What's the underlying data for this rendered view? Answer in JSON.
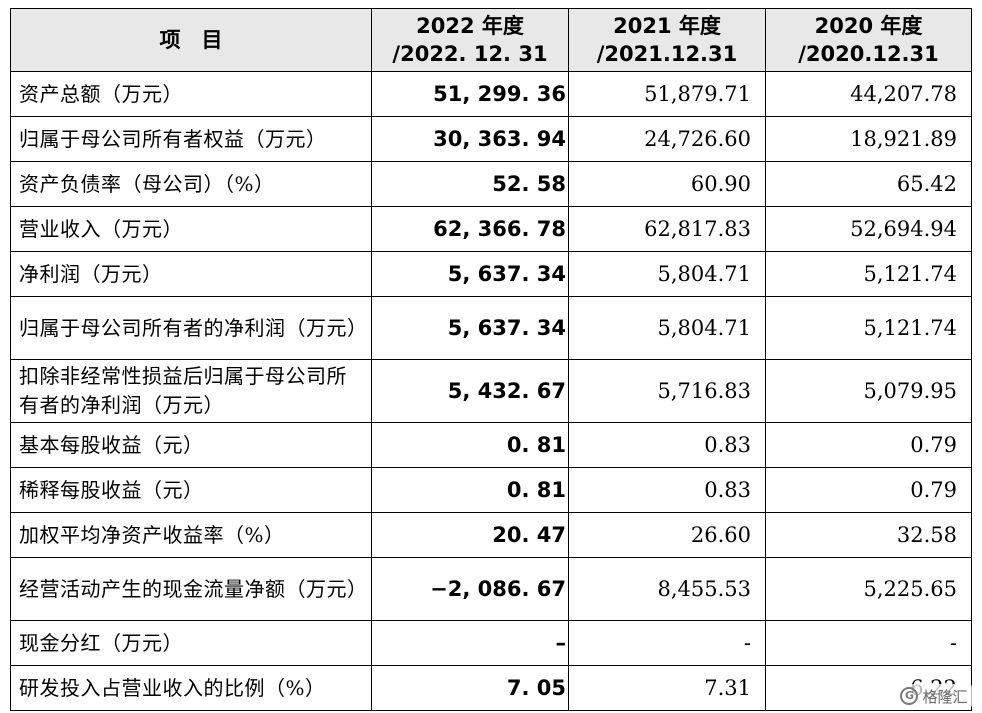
{
  "header": {
    "item": "项　目",
    "col2022_line1": "2022 年度",
    "col2022_line2": "/2022. 12. 31",
    "col2021_line1": "2021 年度",
    "col2021_line2": "/2021.12.31",
    "col2020_line1": "2020 年度",
    "col2020_line2": "/2020.12.31"
  },
  "rows": [
    {
      "label": "资产总额（万元）",
      "v2022": "51, 299. 36",
      "v2021": "51,879.71",
      "v2020": "44,207.78"
    },
    {
      "label": "归属于母公司所有者权益（万元）",
      "v2022": "30, 363. 94",
      "v2021": "24,726.60",
      "v2020": "18,921.89"
    },
    {
      "label": "资产负债率（母公司）（%）",
      "v2022": "52. 58",
      "v2021": "60.90",
      "v2020": "65.42"
    },
    {
      "label": "营业收入（万元）",
      "v2022": "62, 366. 78",
      "v2021": "62,817.83",
      "v2020": "52,694.94"
    },
    {
      "label": "净利润（万元）",
      "v2022": "5, 637. 34",
      "v2021": "5,804.71",
      "v2020": "5,121.74"
    },
    {
      "label": "归属于母公司所有者的净利润（万元）",
      "v2022": "5, 637. 34",
      "v2021": "5,804.71",
      "v2020": "5,121.74"
    },
    {
      "label": "扣除非经常性损益后归属于母公司所有者的净利润（万元）",
      "v2022": "5, 432. 67",
      "v2021": "5,716.83",
      "v2020": "5,079.95"
    },
    {
      "label": "基本每股收益（元）",
      "v2022": "0. 81",
      "v2021": "0.83",
      "v2020": "0.79"
    },
    {
      "label": "稀释每股收益（元）",
      "v2022": "0. 81",
      "v2021": "0.83",
      "v2020": "0.79"
    },
    {
      "label": "加权平均净资产收益率（%）",
      "v2022": "20. 47",
      "v2021": "26.60",
      "v2020": "32.58"
    },
    {
      "label": "经营活动产生的现金流量净额（万元）",
      "v2022": "−2, 086. 67",
      "v2021": "8,455.53",
      "v2020": "5,225.65"
    },
    {
      "label": "现金分红（万元）",
      "v2022": "–",
      "v2021": "-",
      "v2020": "-"
    },
    {
      "label": "研发投入占营业收入的比例（%）",
      "v2022": "7. 05",
      "v2021": "7.31",
      "v2020": "6.22"
    }
  ],
  "watermark": {
    "text": "格隆汇",
    "icon": "gelonghui-logo-icon"
  }
}
